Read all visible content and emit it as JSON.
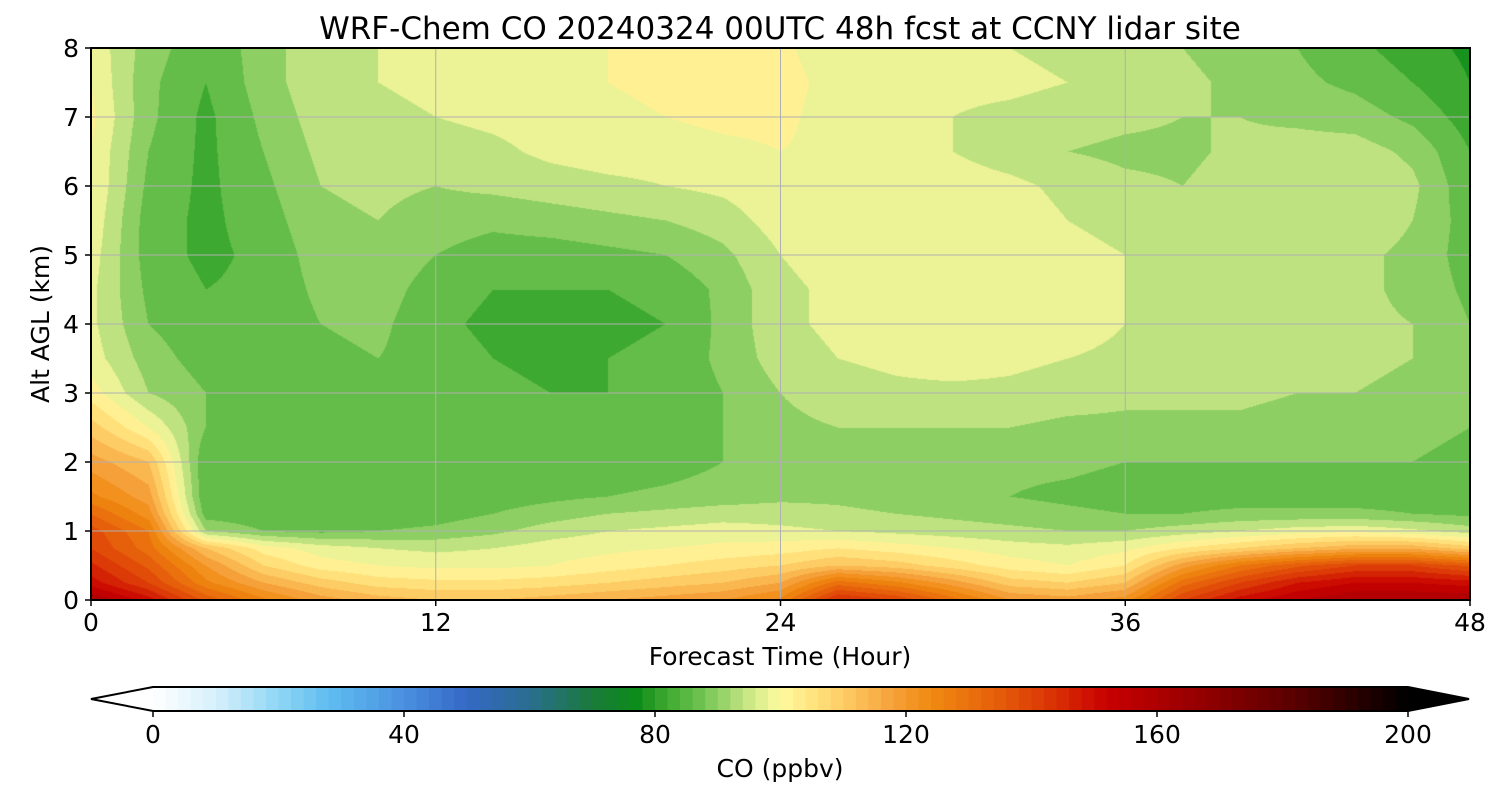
{
  "chart_data": {
    "type": "heatmap",
    "title": "WRF-Chem CO  20240324 00UTC 48h fcst at CCNY lidar site",
    "xlabel": "Forecast Time (Hour)",
    "ylabel": "Alt AGL (km)",
    "xlim": [
      0,
      48
    ],
    "ylim": [
      0,
      8
    ],
    "x_ticks": [
      0,
      12,
      24,
      36,
      48
    ],
    "y_ticks": [
      0,
      1,
      2,
      3,
      4,
      5,
      6,
      7,
      8
    ],
    "x_tick_labels": [
      "0",
      "12",
      "24",
      "36",
      "48"
    ],
    "y_tick_labels": [
      "0",
      "1",
      "2",
      "3",
      "4",
      "5",
      "6",
      "7",
      "8"
    ],
    "grid": true,
    "x": [
      0,
      2,
      4,
      6,
      8,
      10,
      12,
      14,
      16,
      18,
      20,
      22,
      24,
      26,
      28,
      30,
      32,
      34,
      36,
      38,
      40,
      42,
      44,
      46,
      48
    ],
    "y": [
      0,
      0.25,
      0.5,
      0.75,
      1,
      1.25,
      1.5,
      2,
      2.5,
      3,
      3.5,
      4,
      4.5,
      5,
      5.5,
      6,
      6.5,
      7,
      7.5,
      8
    ],
    "z": [
      [
        160,
        150,
        135,
        125,
        118,
        114,
        112,
        112,
        114,
        116,
        118,
        120,
        125,
        145,
        140,
        130,
        120,
        118,
        122,
        140,
        150,
        156,
        160,
        160,
        160
      ],
      [
        150,
        140,
        125,
        116,
        110,
        106,
        105,
        105,
        106,
        108,
        110,
        112,
        116,
        130,
        125,
        118,
        110,
        108,
        112,
        130,
        140,
        148,
        152,
        152,
        150
      ],
      [
        145,
        135,
        120,
        108,
        102,
        100,
        99,
        99,
        100,
        102,
        104,
        106,
        108,
        112,
        110,
        106,
        102,
        100,
        104,
        118,
        128,
        135,
        140,
        140,
        135
      ],
      [
        140,
        130,
        112,
        102,
        98,
        96,
        95,
        96,
        98,
        99,
        100,
        101,
        102,
        104,
        102,
        100,
        98,
        97,
        99,
        104,
        108,
        112,
        115,
        115,
        110
      ],
      [
        138,
        128,
        92,
        88,
        87,
        88,
        89,
        91,
        94,
        96,
        97,
        98,
        97,
        96,
        95,
        94,
        93,
        92,
        92,
        94,
        96,
        98,
        99,
        97,
        94
      ],
      [
        132,
        122,
        86,
        85,
        84,
        85,
        86,
        88,
        90,
        92,
        93,
        94,
        94,
        93,
        92,
        91,
        90,
        89,
        88,
        88,
        89,
        89,
        89,
        88,
        87
      ],
      [
        125,
        118,
        84,
        84,
        84,
        84,
        85,
        86,
        87,
        88,
        89,
        90,
        91,
        91,
        90,
        89,
        88,
        87,
        86,
        86,
        86,
        86,
        86,
        86,
        86
      ],
      [
        118,
        112,
        84,
        84,
        84,
        85,
        85,
        85,
        85,
        85,
        86,
        88,
        90,
        91,
        91,
        90,
        89,
        89,
        88,
        88,
        88,
        88,
        88,
        88,
        87
      ],
      [
        110,
        100,
        88,
        86,
        85,
        86,
        86,
        85,
        85,
        85,
        86,
        88,
        91,
        92,
        92,
        92,
        92,
        91,
        91,
        91,
        91,
        90,
        90,
        89,
        88
      ],
      [
        102,
        92,
        88,
        87,
        86,
        87,
        87,
        85,
        84,
        84,
        85,
        88,
        92,
        94,
        95,
        95,
        95,
        94,
        93,
        93,
        93,
        92,
        92,
        91,
        89
      ],
      [
        98,
        90,
        86,
        86,
        87,
        88,
        86,
        84,
        83,
        84,
        85,
        89,
        94,
        96,
        97,
        98,
        97,
        96,
        95,
        94,
        94,
        93,
        93,
        92,
        89
      ],
      [
        97,
        88,
        85,
        85,
        88,
        89,
        85,
        83,
        82,
        83,
        84,
        89,
        95,
        97,
        98,
        99,
        99,
        98,
        96,
        95,
        95,
        94,
        93,
        92,
        88
      ],
      [
        97,
        87,
        84,
        85,
        89,
        90,
        86,
        84,
        84,
        84,
        85,
        89,
        95,
        97,
        98,
        99,
        99,
        98,
        96,
        95,
        94,
        93,
        93,
        91,
        87
      ],
      [
        98,
        86,
        83,
        85,
        90,
        91,
        88,
        86,
        86,
        87,
        88,
        91,
        96,
        98,
        99,
        99,
        99,
        97,
        96,
        95,
        94,
        93,
        93,
        91,
        86
      ],
      [
        99,
        86,
        83,
        86,
        91,
        92,
        90,
        89,
        90,
        91,
        92,
        94,
        98,
        99,
        99,
        99,
        98,
        96,
        95,
        95,
        95,
        95,
        95,
        92,
        86
      ],
      [
        100,
        87,
        83,
        87,
        92,
        93,
        92,
        93,
        94,
        95,
        96,
        97,
        99,
        100,
        99,
        98,
        97,
        95,
        93,
        92,
        94,
        95,
        96,
        93,
        85
      ],
      [
        100,
        88,
        83,
        88,
        93,
        94,
        94,
        95,
        97,
        98,
        98,
        99,
        100,
        99,
        98,
        96,
        94,
        92,
        91,
        91,
        93,
        94,
        94,
        91,
        84
      ],
      [
        101,
        89,
        83,
        89,
        94,
        95,
        96,
        97,
        98,
        99,
        100,
        101,
        101,
        98,
        97,
        96,
        95,
        94,
        93,
        92,
        92,
        91,
        90,
        87,
        82
      ],
      [
        100,
        89,
        84,
        90,
        95,
        96,
        97,
        98,
        99,
        100,
        101,
        102,
        102,
        98,
        97,
        97,
        97,
        96,
        94,
        93,
        91,
        89,
        87,
        84,
        80
      ],
      [
        99,
        90,
        85,
        90,
        95,
        96,
        97,
        98,
        99,
        100,
        101,
        102,
        101,
        97,
        96,
        96,
        96,
        95,
        94,
        92,
        90,
        88,
        85,
        82,
        79
      ]
    ],
    "colorbar": {
      "label": "CO  (ppbv)",
      "ticks": [
        0,
        40,
        80,
        120,
        160,
        200
      ],
      "tick_labels": [
        "0",
        "40",
        "80",
        "120",
        "160",
        "200"
      ],
      "min": 0,
      "max": 200,
      "extend": "both",
      "stops": [
        [
          0,
          "#ffffff"
        ],
        [
          10,
          "#d6f0fa"
        ],
        [
          20,
          "#8fd6f5"
        ],
        [
          28,
          "#5fbdf0"
        ],
        [
          40,
          "#4a90e0"
        ],
        [
          50,
          "#3568c5"
        ],
        [
          60,
          "#2a6e8f"
        ],
        [
          70,
          "#1a7a3a"
        ],
        [
          77,
          "#0c8c1a"
        ],
        [
          80,
          "#2d9e28"
        ],
        [
          84,
          "#4fb33a"
        ],
        [
          88,
          "#76c655"
        ],
        [
          92,
          "#a5d872"
        ],
        [
          96,
          "#d7ec8c"
        ],
        [
          100,
          "#fffaa0"
        ],
        [
          106,
          "#ffe07a"
        ],
        [
          112,
          "#fcc25a"
        ],
        [
          118,
          "#f6a03a"
        ],
        [
          124,
          "#f08a10"
        ],
        [
          132,
          "#e8690c"
        ],
        [
          142,
          "#dc3a06"
        ],
        [
          152,
          "#c80000"
        ],
        [
          168,
          "#900000"
        ],
        [
          184,
          "#500000"
        ],
        [
          200,
          "#000000"
        ]
      ]
    }
  }
}
